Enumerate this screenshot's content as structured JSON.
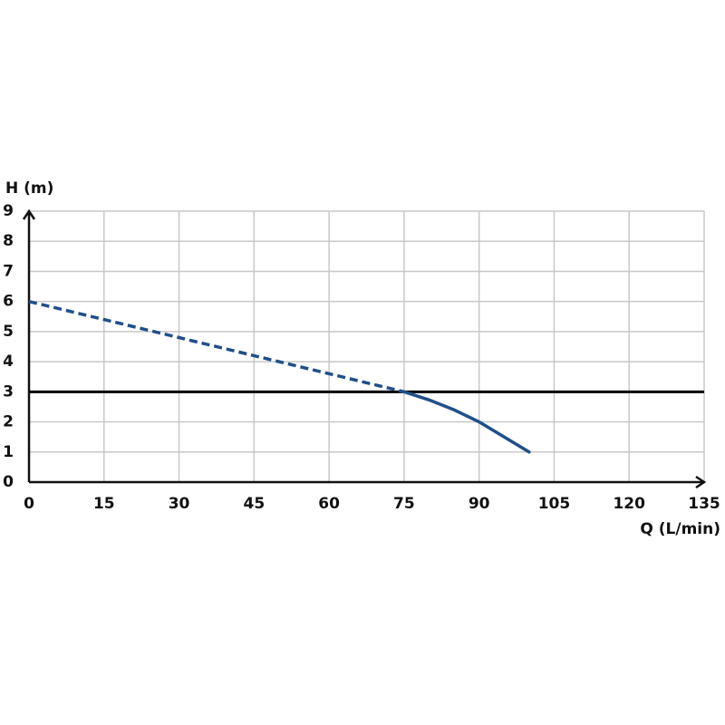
{
  "chart_data": {
    "type": "line",
    "x_label": "Q (L/min)",
    "y_label": "H (m)",
    "xlim": [
      0,
      135
    ],
    "ylim": [
      0,
      9
    ],
    "xticks": [
      0,
      15,
      30,
      45,
      60,
      75,
      90,
      105,
      120,
      135
    ],
    "yticks": [
      0,
      1,
      2,
      3,
      4,
      5,
      6,
      7,
      8,
      9
    ],
    "grid": true,
    "series": [
      {
        "color": "#1f4f8a",
        "dashed": true,
        "x": [
          0,
          75
        ],
        "values": [
          6,
          3
        ]
      },
      {
        "color": "#1f4f8a",
        "dashed": false,
        "x": [
          75,
          80,
          85,
          90,
          95,
          100
        ],
        "values": [
          3,
          2.73,
          2.4,
          2.0,
          1.5,
          1.0
        ]
      }
    ],
    "reference_line": {
      "value": 3,
      "color": "#000000"
    }
  }
}
